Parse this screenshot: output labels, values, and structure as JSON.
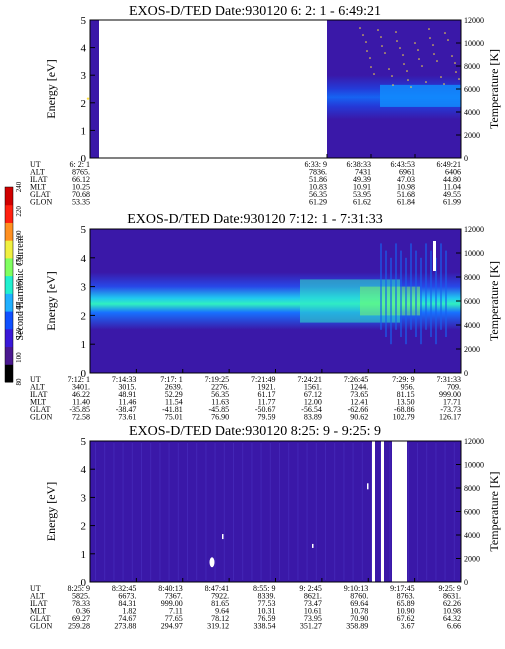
{
  "colors": {
    "background_spectrogram": "#3a18a8",
    "colorbar": [
      "#000000",
      "#4a1890",
      "#3a18d8",
      "#1050ff",
      "#20b0ff",
      "#20f0d0",
      "#80ff60",
      "#f0f040",
      "#ff9020",
      "#ff2010",
      "#d00000"
    ]
  },
  "colorbar": {
    "label": "Second Harmonic Current",
    "ticks": [
      "80",
      "100",
      "120",
      "140",
      "160",
      "180",
      "200",
      "220",
      "240"
    ]
  },
  "panels": [
    {
      "title": "EXOS-D/TED  Date:930120  6: 2: 1 - 6:49:21",
      "ylabel": "Energy [eV]",
      "ylabel_right": "Temperature [K]",
      "yticks": [
        "0",
        "1",
        "2",
        "3",
        "4",
        "5"
      ],
      "yticks_right": [
        "0",
        "2000",
        "4000",
        "6000",
        "8000",
        "10000",
        "12000"
      ],
      "row_labels": [
        "UT",
        "ALT",
        "ILAT",
        "MLT",
        "GLAT",
        "GLON"
      ],
      "columns": [
        {
          "UT": "6: 2: 1",
          "ALT": "8765.",
          "ILAT": "66.12",
          "MLT": "10.25",
          "GLAT": "70.68",
          "GLON": "53.35"
        },
        {
          "UT": "6:33: 9",
          "ALT": "7836.",
          "ILAT": "51.86",
          "MLT": "10.83",
          "GLAT": "56.35",
          "GLON": "61.29"
        },
        {
          "UT": "6:38:33",
          "ALT": "7431",
          "ILAT": "49.39",
          "MLT": "10.91",
          "GLAT": "53.95",
          "GLON": "61.62"
        },
        {
          "UT": "6:43:53",
          "ALT": "6961",
          "ILAT": "47.03",
          "MLT": "10.98",
          "GLAT": "51.68",
          "GLON": "61.84"
        },
        {
          "UT": "6:49:21",
          "ALT": "6406",
          "ILAT": "44.80",
          "MLT": "11.04",
          "GLAT": "49.55",
          "GLON": "61.99"
        }
      ]
    },
    {
      "title": "EXOS-D/TED  Date:930120  7:12: 1 - 7:31:33",
      "ylabel": "Energy [eV]",
      "ylabel_right": "Temperature [K]",
      "yticks": [
        "0",
        "1",
        "2",
        "3",
        "4",
        "5"
      ],
      "yticks_right": [
        "0",
        "2000",
        "4000",
        "6000",
        "8000",
        "10000",
        "12000"
      ],
      "row_labels": [
        "UT",
        "ALT",
        "ILAT",
        "MLT",
        "GLAT",
        "GLON"
      ],
      "columns": [
        {
          "UT": "7:12: 1",
          "ALT": "3401.",
          "ILAT": "46.22",
          "MLT": "11.40",
          "GLAT": "-35.85",
          "GLON": "72.58"
        },
        {
          "UT": "7:14:33",
          "ALT": "3015.",
          "ILAT": "48.91",
          "MLT": "11.46",
          "GLAT": "-38.47",
          "GLON": "73.61"
        },
        {
          "UT": "7:17: 1",
          "ALT": "2639.",
          "ILAT": "52.29",
          "MLT": "11.54",
          "GLAT": "-41.81",
          "GLON": "75.01"
        },
        {
          "UT": "7:19:25",
          "ALT": "2276.",
          "ILAT": "56.35",
          "MLT": "11.63",
          "GLAT": "-45.85",
          "GLON": "76.90"
        },
        {
          "UT": "7:21:49",
          "ALT": "1921.",
          "ILAT": "61.17",
          "MLT": "11.77",
          "GLAT": "-50.67",
          "GLON": "79.59"
        },
        {
          "UT": "7:24:21",
          "ALT": "1561.",
          "ILAT": "67.12",
          "MLT": "12.00",
          "GLAT": "-56.54",
          "GLON": "83.89"
        },
        {
          "UT": "7:26:45",
          "ALT": "1244.",
          "ILAT": "73.65",
          "MLT": "12.41",
          "GLAT": "-62.66",
          "GLON": "90.62"
        },
        {
          "UT": "7:29: 9",
          "ALT": "956.",
          "ILAT": "81.15",
          "MLT": "13.50",
          "GLAT": "-68.86",
          "GLON": "102.79"
        },
        {
          "UT": "7:31:33",
          "ALT": "709.",
          "ILAT": "999.00",
          "MLT": "17.71",
          "GLAT": "-73.73",
          "GLON": "126.17"
        }
      ]
    },
    {
      "title": "EXOS-D/TED  Date:930120  8:25: 9 - 9:25: 9",
      "ylabel": "Energy [eV]",
      "ylabel_right": "Temperature [K]",
      "yticks": [
        "0",
        "1",
        "2",
        "3",
        "4",
        "5"
      ],
      "yticks_right": [
        "0",
        "2000",
        "4000",
        "6000",
        "8000",
        "10000",
        "12000"
      ],
      "row_labels": [
        "UT",
        "ALT",
        "ILAT",
        "MLT",
        "GLAT",
        "GLON"
      ],
      "columns": [
        {
          "UT": "8:25: 9",
          "ALT": "5825.",
          "ILAT": "78.33",
          "MLT": "0.36",
          "GLAT": "69.27",
          "GLON": "259.28"
        },
        {
          "UT": "8:32:45",
          "ALT": "6673.",
          "ILAT": "84.31",
          "MLT": "1.82",
          "GLAT": "74.67",
          "GLON": "273.88"
        },
        {
          "UT": "8:40:13",
          "ALT": "7367.",
          "ILAT": "999.00",
          "MLT": "7.11",
          "GLAT": "77.65",
          "GLON": "294.97"
        },
        {
          "UT": "8:47:41",
          "ALT": "7922.",
          "ILAT": "81.65",
          "MLT": "9.64",
          "GLAT": "78.12",
          "GLON": "319.12"
        },
        {
          "UT": "8:55: 9",
          "ALT": "8339.",
          "ILAT": "77.53",
          "MLT": "10.31",
          "GLAT": "76.59",
          "GLON": "338.54"
        },
        {
          "UT": "9: 2:45",
          "ALT": "8621.",
          "ILAT": "73.47",
          "MLT": "10.61",
          "GLAT": "73.95",
          "GLON": "351.27"
        },
        {
          "UT": "9:10:13",
          "ALT": "8760.",
          "ILAT": "69.64",
          "MLT": "10.78",
          "GLAT": "70.90",
          "GLON": "358.89"
        },
        {
          "UT": "9:17:45",
          "ALT": "8763.",
          "ILAT": "65.89",
          "MLT": "10.90",
          "GLAT": "67.62",
          "GLON": "3.67"
        },
        {
          "UT": "9:25: 9",
          "ALT": "8631.",
          "ILAT": "62.26",
          "MLT": "10.98",
          "GLAT": "64.32",
          "GLON": "6.66"
        }
      ]
    }
  ],
  "chart_data": [
    {
      "type": "heatmap",
      "title": "EXOS-D/TED  Date:930120  6: 2: 1 - 6:49:21",
      "ylabel": "Energy [eV]",
      "ylabel_right": "Temperature [K]",
      "ylim": [
        0,
        5
      ],
      "ylim_right": [
        0,
        12000
      ],
      "x": [
        "6: 2: 1",
        "6:33: 9",
        "6:38:33",
        "6:43:53",
        "6:49:21"
      ],
      "data_gap": [
        "6: 2: 1",
        "6:33: 9"
      ],
      "bands": [
        {
          "x_from": "6:38:33",
          "x_to": "6:49:21",
          "energy_center": 2.7,
          "intensity": "high"
        }
      ]
    },
    {
      "type": "heatmap",
      "title": "EXOS-D/TED  Date:930120  7:12: 1 - 7:31:33",
      "ylabel": "Energy [eV]",
      "ylabel_right": "Temperature [K]",
      "ylim": [
        0,
        5
      ],
      "ylim_right": [
        0,
        12000
      ],
      "x": [
        "7:12: 1",
        "7:14:33",
        "7:17: 1",
        "7:19:25",
        "7:21:49",
        "7:24:21",
        "7:26:45",
        "7:29: 9",
        "7:31:33"
      ],
      "bands": [
        {
          "x_from": "7:12: 1",
          "x_to": "7:31:33",
          "energy_center": 2.2,
          "intensity": "high"
        }
      ]
    },
    {
      "type": "heatmap",
      "title": "EXOS-D/TED  Date:930120  8:25: 9 - 9:25: 9",
      "ylabel": "Energy [eV]",
      "ylabel_right": "Temperature [K]",
      "ylim": [
        0,
        5
      ],
      "ylim_right": [
        0,
        12000
      ],
      "x": [
        "8:25: 9",
        "8:32:45",
        "8:40:13",
        "8:47:41",
        "8:55: 9",
        "9: 2:45",
        "9:10:13",
        "9:17:45",
        "9:25: 9"
      ],
      "bands": []
    }
  ]
}
